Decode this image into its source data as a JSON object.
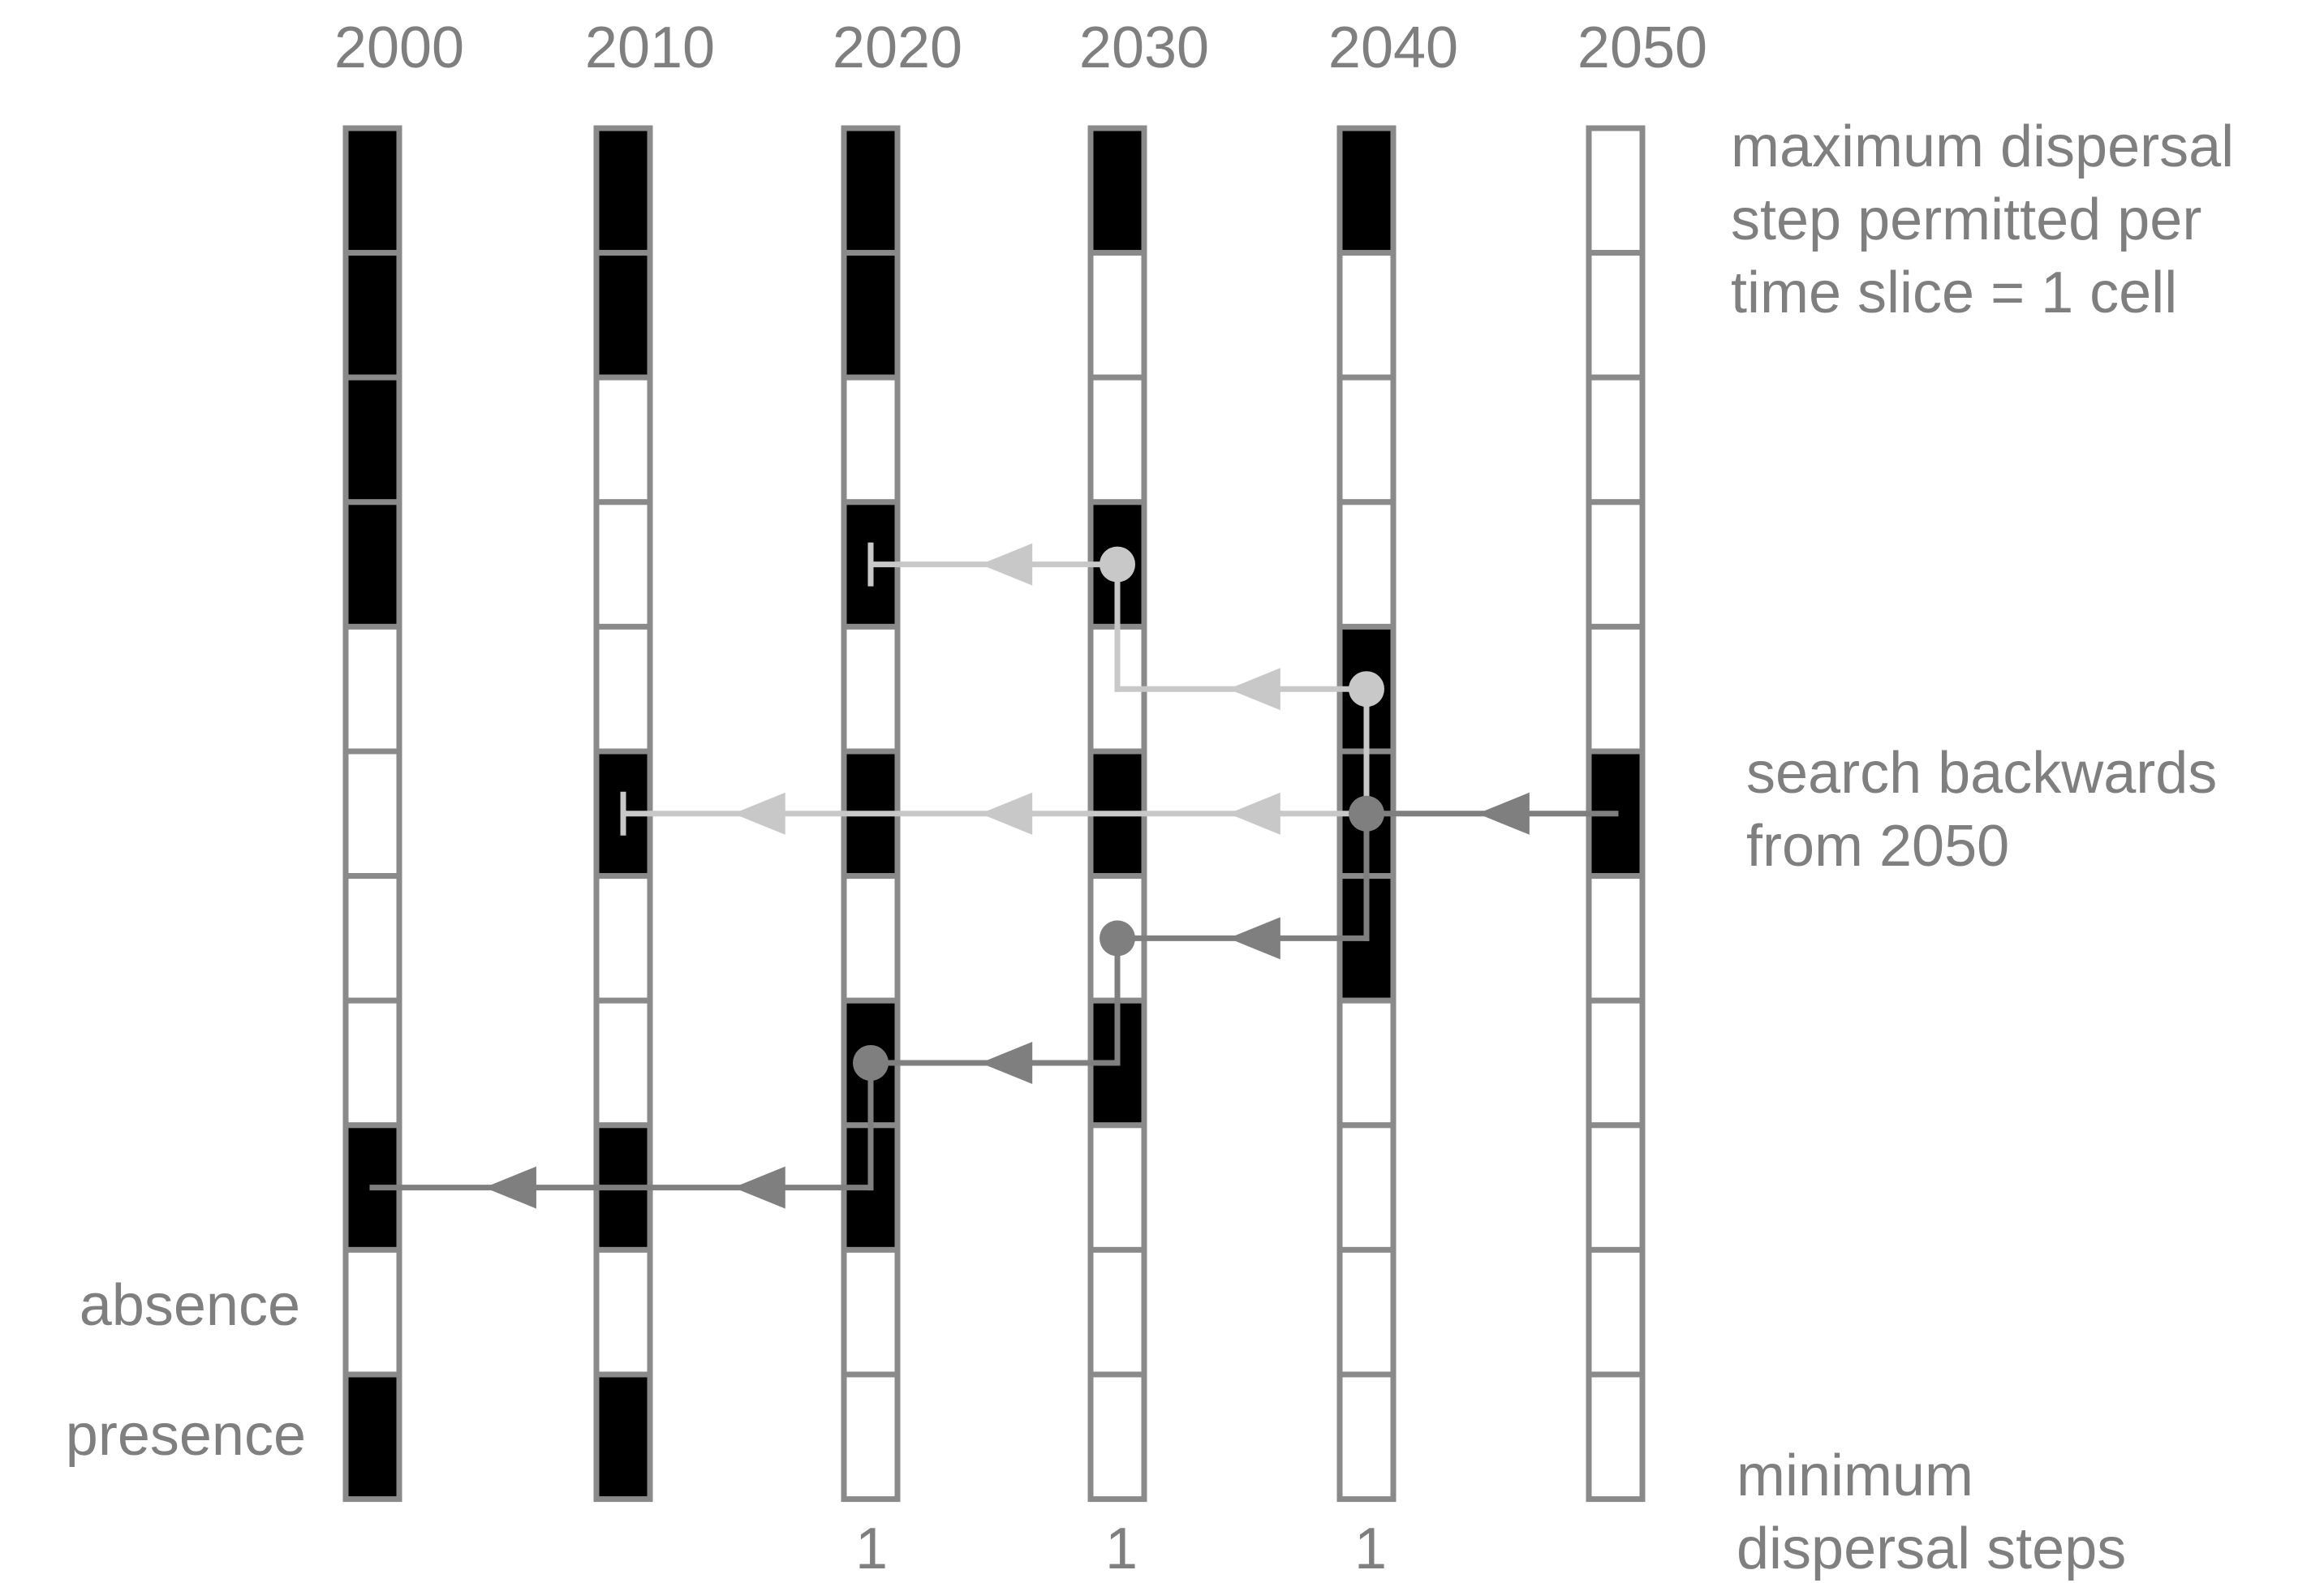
{
  "years": [
    "2000",
    "2010",
    "2020",
    "2030",
    "2040",
    "2050"
  ],
  "grid": [
    [
      1,
      1,
      1,
      1,
      0,
      0,
      0,
      0,
      1,
      0,
      1
    ],
    [
      1,
      1,
      0,
      0,
      0,
      1,
      0,
      0,
      1,
      0,
      1
    ],
    [
      1,
      1,
      0,
      1,
      0,
      1,
      0,
      1,
      1,
      0,
      0
    ],
    [
      1,
      0,
      0,
      1,
      0,
      1,
      0,
      1,
      0,
      0,
      0
    ],
    [
      1,
      0,
      0,
      0,
      1,
      1,
      1,
      0,
      0,
      0,
      0
    ],
    [
      0,
      0,
      0,
      0,
      0,
      1,
      0,
      0,
      0,
      0,
      0
    ]
  ],
  "legend": {
    "absence": "absence",
    "presence": "presence"
  },
  "annotations": {
    "max_dispersal": [
      "maximum dispersal",
      "step permitted per",
      "time slice = 1 cell"
    ],
    "search": [
      "search backwards",
      "from 2050"
    ],
    "min_steps": [
      "minimum",
      "dispersal steps"
    ]
  },
  "min_steps_values": [
    "",
    "",
    "1",
    "1",
    "1",
    ""
  ],
  "paths": {
    "light": {
      "color": "#c8c8c8",
      "segments": [
        [
          [
            4,
            5
          ],
          [
            1,
            5
          ]
        ],
        [
          [
            4,
            5
          ],
          [
            4,
            4
          ]
        ],
        [
          [
            4,
            4
          ],
          [
            3,
            4
          ]
        ],
        [
          [
            3,
            4
          ],
          [
            3,
            3
          ]
        ],
        [
          [
            3,
            3
          ],
          [
            2,
            3
          ]
        ]
      ],
      "arrows": [
        [
          1.55,
          5
        ],
        [
          2.55,
          5
        ],
        [
          3.55,
          5
        ],
        [
          3.55,
          4
        ],
        [
          2.55,
          3
        ]
      ],
      "dots": [
        [
          4,
          4.5
        ],
        [
          3,
          3.5
        ]
      ],
      "stops": [
        [
          1,
          5
        ],
        [
          2,
          3
        ]
      ]
    },
    "dark": {
      "color": "#7f7f7f",
      "segments": [
        [
          [
            5,
            5
          ],
          [
            4,
            5
          ]
        ],
        [
          [
            4,
            5
          ],
          [
            4,
            6
          ]
        ],
        [
          [
            4,
            6
          ],
          [
            3,
            6
          ]
        ],
        [
          [
            3,
            6
          ],
          [
            3,
            7
          ]
        ],
        [
          [
            3,
            7
          ],
          [
            2,
            7
          ]
        ],
        [
          [
            2,
            7
          ],
          [
            2,
            8
          ]
        ],
        [
          [
            2,
            8
          ],
          [
            0,
            8
          ]
        ]
      ],
      "arrows": [
        [
          4.55,
          5
        ],
        [
          3.55,
          6
        ],
        [
          2.55,
          7
        ],
        [
          1.55,
          8
        ],
        [
          0.55,
          8
        ]
      ],
      "dots": [
        [
          4,
          5.5
        ],
        [
          3,
          6.5
        ],
        [
          2,
          7.5
        ]
      ]
    }
  }
}
